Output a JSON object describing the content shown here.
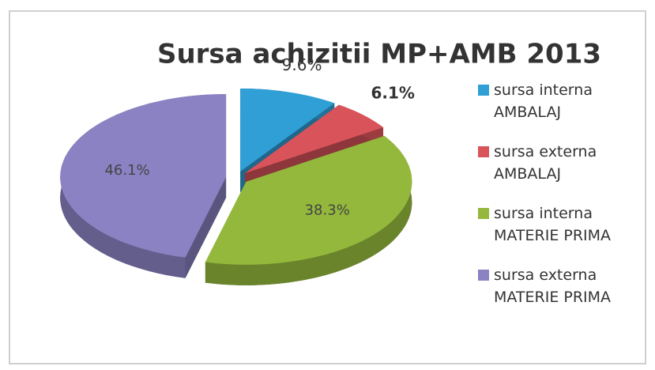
{
  "chart_data": {
    "type": "pie",
    "title": "Sursa achizitii MP+AMB 2013",
    "categories": [
      "sursa interna AMBALAJ",
      "sursa externa AMBALAJ",
      "sursa interna MATERIE PRIMA",
      "sursa externa MATERIE PRIMA"
    ],
    "values": [
      9.6,
      6.1,
      38.3,
      46.1
    ],
    "value_labels": [
      "9.6%",
      "6.1%",
      "38.3%",
      "46.1%"
    ],
    "colors": [
      "#2f9fd6",
      "#d9535a",
      "#93b83c",
      "#8a82c2"
    ],
    "legend": "right"
  }
}
